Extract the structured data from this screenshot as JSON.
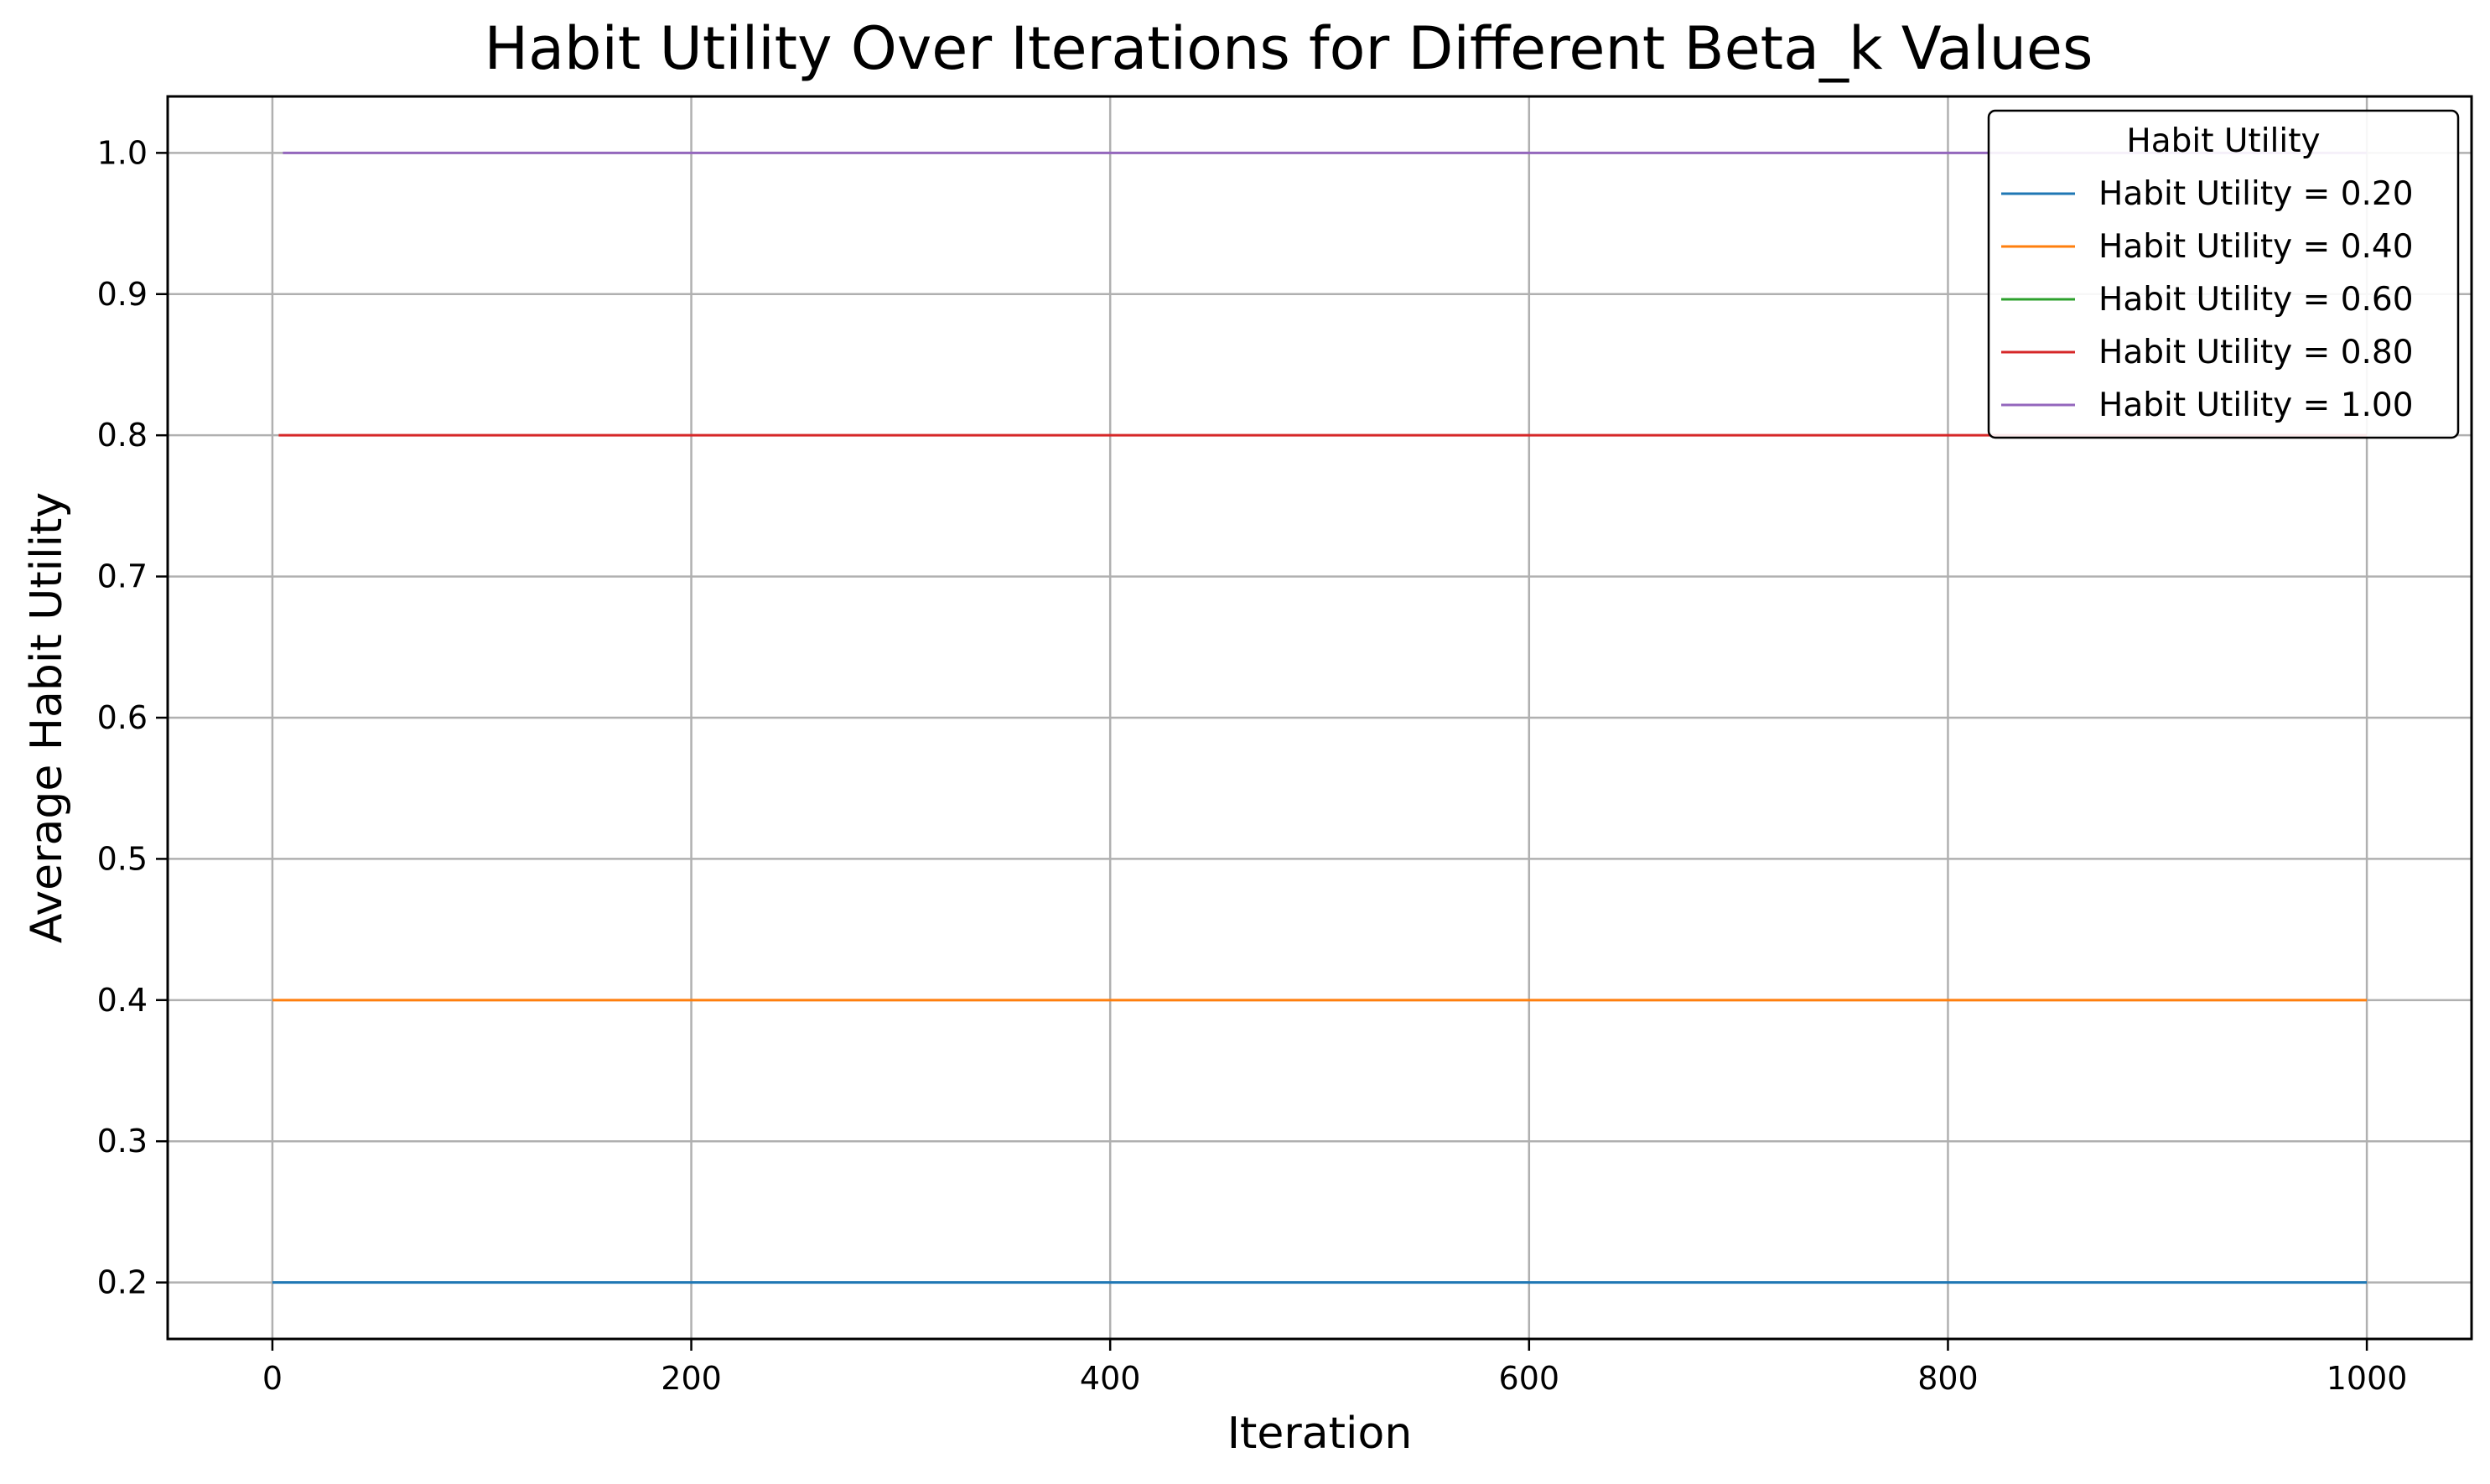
{
  "chart_data": {
    "type": "line",
    "title": "Habit Utility Over Iterations for Different Beta_k Values",
    "xlabel": "Iteration",
    "ylabel": "Average Habit Utility",
    "xlim": [
      -50,
      1050
    ],
    "ylim": [
      0.16,
      1.04
    ],
    "xticks": [
      0,
      200,
      400,
      600,
      800,
      1000
    ],
    "yticks": [
      0.2,
      0.3,
      0.4,
      0.5,
      0.6,
      0.7,
      0.8,
      0.9,
      1.0
    ],
    "xtick_labels": [
      "0",
      "200",
      "400",
      "600",
      "800",
      "1000"
    ],
    "ytick_labels": [
      "0.2",
      "0.3",
      "0.4",
      "0.5",
      "0.6",
      "0.7",
      "0.8",
      "0.9",
      "1.0"
    ],
    "grid": true,
    "legend": {
      "title": "Habit Utility",
      "position": "top-right"
    },
    "series": [
      {
        "name": "Habit Utility = 0.20",
        "color": "#1f77b4",
        "x": [
          0,
          1000
        ],
        "values": [
          0.2,
          0.2
        ]
      },
      {
        "name": "Habit Utility = 0.40",
        "color": "#ff7f0e",
        "x": [
          0,
          1000
        ],
        "values": [
          0.4,
          0.4
        ]
      },
      {
        "name": "Habit Utility = 0.60",
        "color": "#2ca02c",
        "x": [],
        "values": []
      },
      {
        "name": "Habit Utility = 0.80",
        "color": "#d62728",
        "x": [
          3,
          1000
        ],
        "values": [
          0.8,
          0.8
        ]
      },
      {
        "name": "Habit Utility = 1.00",
        "color": "#9467bd",
        "x": [
          5,
          1000
        ],
        "values": [
          1.0,
          1.0
        ]
      }
    ]
  }
}
